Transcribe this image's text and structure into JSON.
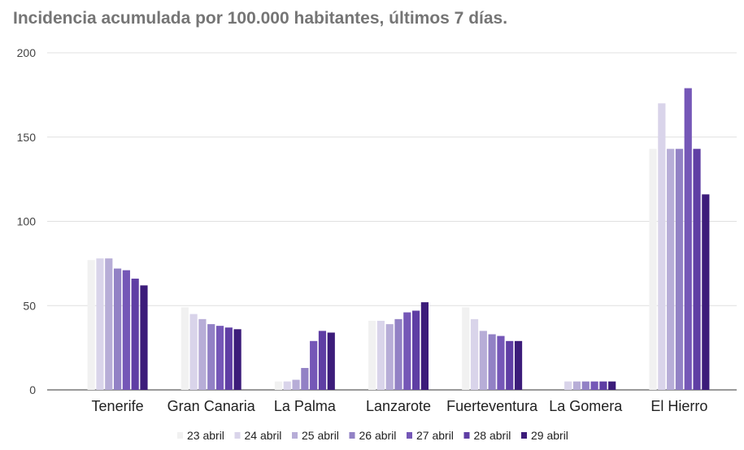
{
  "chart_data": {
    "type": "bar",
    "title": "Incidencia acumulada por 100.000 habitantes, últimos 7 días.",
    "xlabel": "",
    "ylabel": "",
    "ylim": [
      0,
      200
    ],
    "yticks": [
      0,
      50,
      100,
      150,
      200
    ],
    "grid": true,
    "legend_position": "bottom",
    "categories": [
      "Tenerife",
      "Gran Canaria",
      "La Palma",
      "Lanzarote",
      "Fuerteventura",
      "La Gomera",
      "El Hierro"
    ],
    "series": [
      {
        "name": "23 abril",
        "color": "#f1f1f1",
        "values": [
          77,
          49,
          5,
          41,
          49,
          0,
          143
        ]
      },
      {
        "name": "24 abril",
        "color": "#d9d4ea",
        "values": [
          78,
          45,
          5,
          41,
          42,
          5,
          170
        ]
      },
      {
        "name": "25 abril",
        "color": "#b7add7",
        "values": [
          78,
          42,
          6,
          39,
          35,
          5,
          143
        ]
      },
      {
        "name": "26 abril",
        "color": "#9281c5",
        "values": [
          72,
          39,
          13,
          42,
          33,
          5,
          143
        ]
      },
      {
        "name": "27 abril",
        "color": "#7557b7",
        "values": [
          71,
          38,
          29,
          46,
          32,
          5,
          179
        ]
      },
      {
        "name": "28 abril",
        "color": "#5f3ea4",
        "values": [
          66,
          37,
          35,
          47,
          29,
          5,
          143
        ]
      },
      {
        "name": "29 abril",
        "color": "#3c1c7a",
        "values": [
          62,
          36,
          34,
          52,
          29,
          5,
          116
        ]
      }
    ]
  }
}
